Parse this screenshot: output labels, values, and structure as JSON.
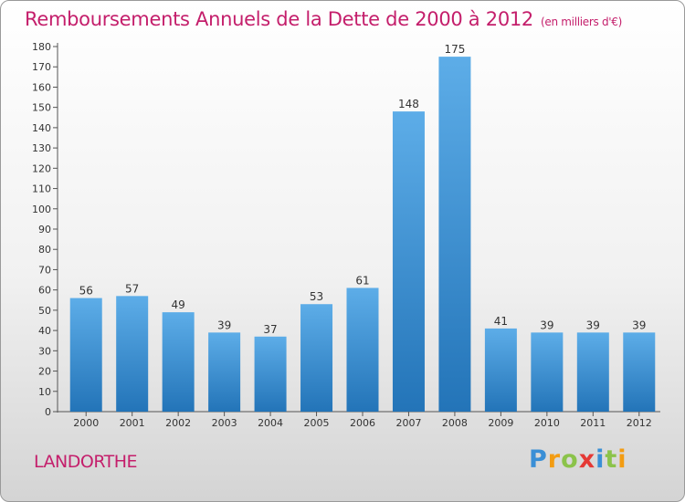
{
  "title": "Remboursements Annuels de la Dette de 2000 à 2012",
  "unit": "(en milliers d'€)",
  "commune": "LANDORTHE",
  "logo": {
    "letters": [
      {
        "char": "P",
        "color": "#3a8fd6"
      },
      {
        "char": "r",
        "color": "#f39c12"
      },
      {
        "char": "o",
        "color": "#8bc34a"
      },
      {
        "char": "x",
        "color": "#e53935"
      },
      {
        "char": "i",
        "color": "#3a8fd6"
      },
      {
        "char": "t",
        "color": "#8bc34a"
      },
      {
        "char": "i",
        "color": "#f39c12"
      }
    ]
  },
  "chart_data": {
    "type": "bar",
    "categories": [
      "2000",
      "2001",
      "2002",
      "2003",
      "2004",
      "2005",
      "2006",
      "2007",
      "2008",
      "2009",
      "2010",
      "2011",
      "2012"
    ],
    "values": [
      56,
      57,
      49,
      39,
      37,
      53,
      61,
      148,
      175,
      41,
      39,
      39,
      39
    ],
    "ylim": [
      0,
      180
    ],
    "ytick_step": 10,
    "grid": false,
    "bar_color_top": "#5dade8",
    "bar_color_bottom": "#2374b8"
  }
}
